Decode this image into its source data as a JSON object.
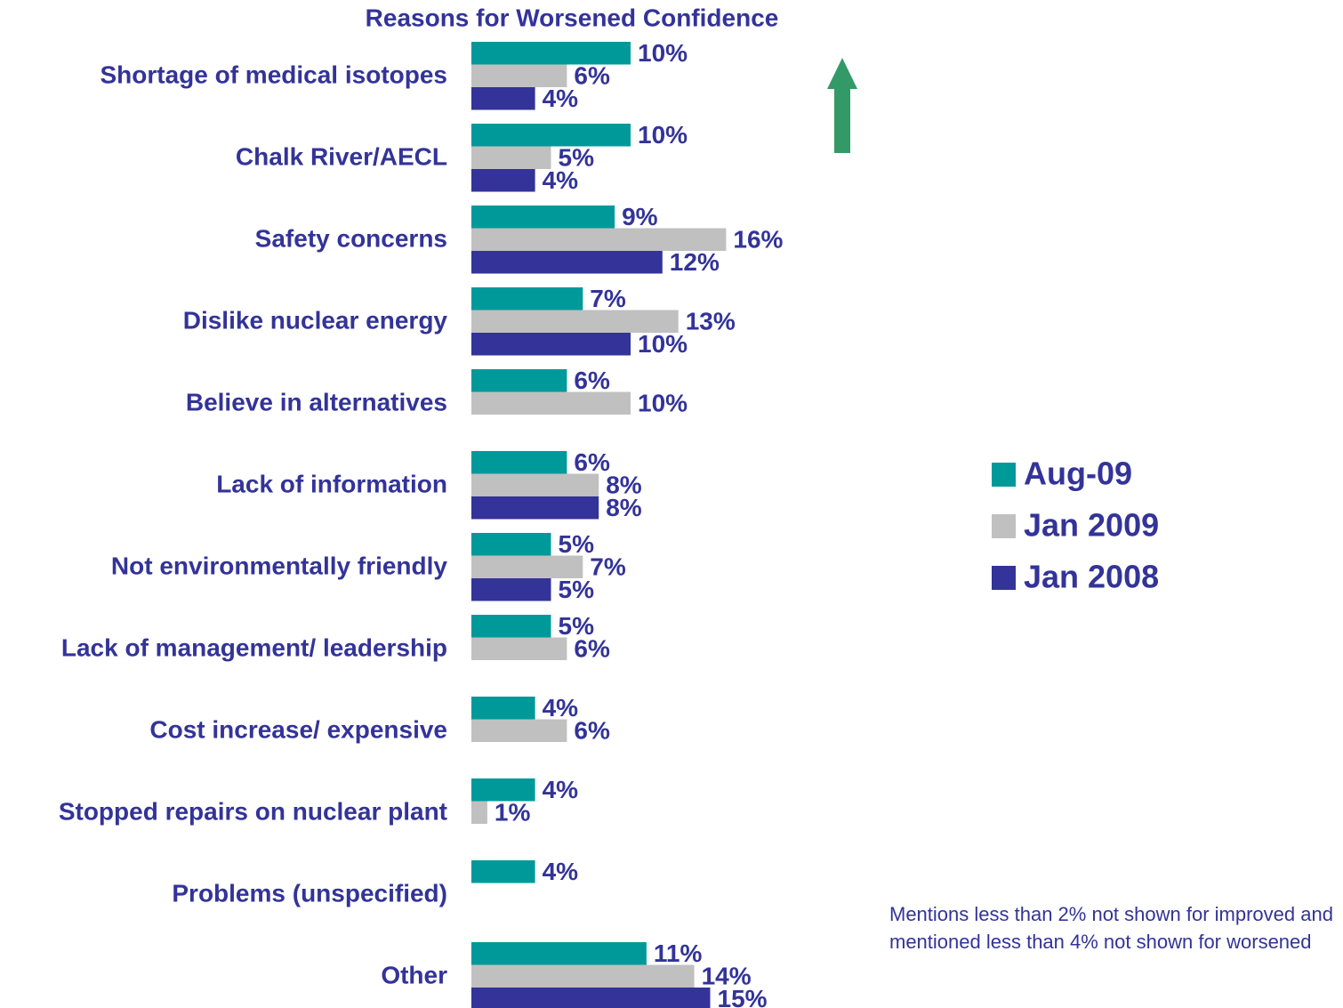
{
  "chart_data": {
    "type": "hbar",
    "title": "Reasons for Worsened Confidence",
    "categories": [
      "Shortage of medical isotopes",
      "Chalk River/AECL",
      "Safety concerns",
      "Dislike nuclear energy",
      "Believe in alternatives",
      "Lack of information",
      "Not environmentally friendly",
      "Lack of management/ leadership",
      "Cost increase/ expensive",
      "Stopped repairs on nuclear plant",
      "Problems (unspecified)",
      "Other"
    ],
    "series": [
      {
        "name": "Aug-09",
        "color": "#009999",
        "values": [
          10,
          10,
          9,
          7,
          6,
          6,
          5,
          5,
          4,
          4,
          4,
          11
        ],
        "value_labels": [
          "10%",
          "10%",
          "9%",
          "7%",
          "6%",
          "6%",
          "5%",
          "5%",
          "4%",
          "4%",
          "4%",
          "11%"
        ]
      },
      {
        "name": "Jan 2009",
        "color": "#c0c0c0",
        "values": [
          6,
          5,
          16,
          13,
          10,
          8,
          7,
          6,
          6,
          1,
          null,
          14
        ],
        "value_labels": [
          "6%",
          "5%",
          "16%",
          "13%",
          "10%",
          "8%",
          "7%",
          "6%",
          "6%",
          "1%",
          null,
          "14%"
        ]
      },
      {
        "name": "Jan 2008",
        "color": "#333399",
        "values": [
          4,
          4,
          12,
          10,
          null,
          8,
          5,
          null,
          null,
          null,
          null,
          15
        ],
        "value_labels": [
          "4%",
          "4%",
          "12%",
          "10%",
          null,
          "8%",
          "5%",
          null,
          null,
          null,
          null,
          "15%"
        ]
      }
    ],
    "note": "Mentions less than 2% not shown for improved and mentioned less than 4% not shown for worsened"
  }
}
